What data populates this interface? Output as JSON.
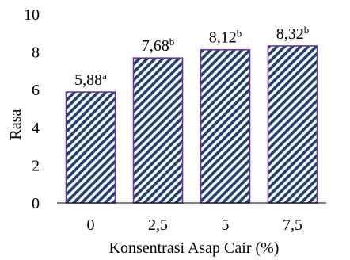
{
  "chart_data": {
    "type": "bar",
    "title": "",
    "xlabel": "Konsentrasi Asap Cair (%)",
    "ylabel": "Rasa",
    "categories": [
      "0",
      "2,5",
      "5",
      "7,5"
    ],
    "values": [
      5.88,
      7.68,
      8.12,
      8.32
    ],
    "data_labels": [
      "5,88",
      "7,68",
      "8,12",
      "8,32"
    ],
    "superscripts": [
      "a",
      "b",
      "b",
      "b"
    ],
    "ylim": [
      0,
      10
    ],
    "yticks": [
      "0",
      "2",
      "4",
      "6",
      "8",
      "10"
    ],
    "grid": false,
    "legend": "none",
    "bar_fill_colors": [
      "#1f3f7a",
      "#ffffff"
    ],
    "bar_border_color": "#7030a0"
  }
}
